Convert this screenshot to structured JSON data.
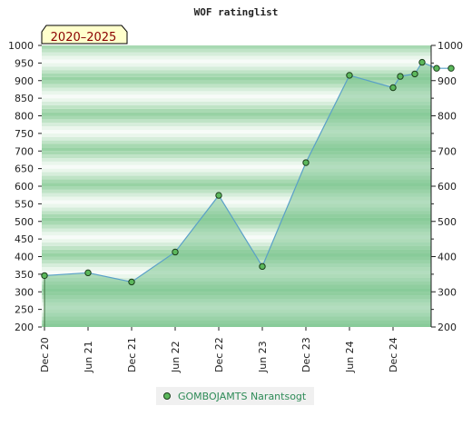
{
  "colors": {
    "line": "#5aa0c8",
    "area": "#7cc48f",
    "marker_fill": "#5cb85c",
    "marker_stroke": "#1a3d1a",
    "badge_fill": "#ffffcc",
    "badge_text": "#8b0000",
    "legend_text": "#2e8b57"
  },
  "chart_data": {
    "type": "area",
    "title": "WOF ratinglist",
    "badge": "2020–2025",
    "x_tick_labels": [
      "Dec 20",
      "Jun 21",
      "Dec 21",
      "Jun 22",
      "Dec 22",
      "Jun 23",
      "Dec 23",
      "Jun 24",
      "Dec 24"
    ],
    "y_tick_labels": [
      "200",
      "250",
      "300",
      "350",
      "400",
      "450",
      "500",
      "550",
      "600",
      "650",
      "700",
      "750",
      "800",
      "850",
      "900",
      "950",
      "1000"
    ],
    "y_right_tick_labels": [
      "200",
      "300",
      "400",
      "500",
      "600",
      "700",
      "800",
      "900",
      "1000"
    ],
    "ylim": [
      200,
      1000
    ],
    "xlim": [
      "2020-12",
      "2025-09"
    ],
    "grid": "horizontal bands",
    "legend_position": "bottom-center",
    "series": [
      {
        "name": "GOMBOJAMTS Narantsogt",
        "points": [
          {
            "x": "2020-12",
            "y": 346
          },
          {
            "x": "2021-06",
            "y": 354
          },
          {
            "x": "2021-12",
            "y": 328
          },
          {
            "x": "2022-06",
            "y": 413
          },
          {
            "x": "2022-12",
            "y": 574
          },
          {
            "x": "2023-06",
            "y": 372
          },
          {
            "x": "2023-12",
            "y": 667
          },
          {
            "x": "2024-06",
            "y": 915
          },
          {
            "x": "2024-12",
            "y": 880
          },
          {
            "x": "2025-01",
            "y": 912
          },
          {
            "x": "2025-03",
            "y": 919
          },
          {
            "x": "2025-04",
            "y": 952
          },
          {
            "x": "2025-06",
            "y": 935
          },
          {
            "x": "2025-08",
            "y": 935
          }
        ]
      }
    ]
  }
}
